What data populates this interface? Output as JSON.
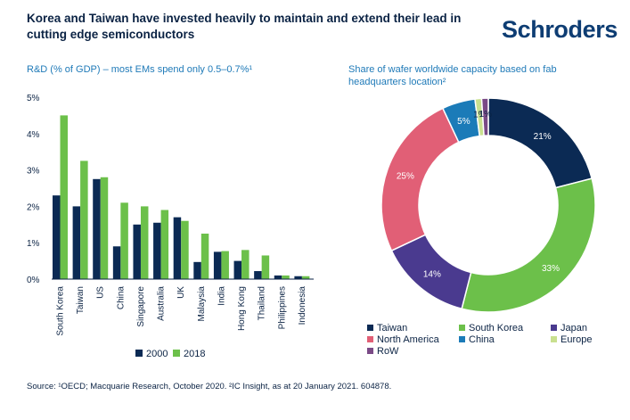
{
  "header": {
    "title": "Korea and Taiwan have invested heavily to maintain and extend their lead in cutting edge semiconductors",
    "brand": "Schroders"
  },
  "colors": {
    "series_2000": "#0b2a54",
    "series_2018": "#6cc04a",
    "taiwan": "#0b2a54",
    "south_korea": "#6cc04a",
    "japan": "#4a3a8f",
    "north_america": "#e15f76",
    "china": "#1b7bb8",
    "europe": "#c9e08f",
    "row": "#7a4a86"
  },
  "chart_data": [
    {
      "type": "bar",
      "title": "R&D (% of GDP) – most EMs spend only 0.5–0.7%¹",
      "categories": [
        "South Korea",
        "Taiwan",
        "US",
        "China",
        "Singapore",
        "Australia",
        "UK",
        "Malaysia",
        "India",
        "Hong Kong",
        "Thailand",
        "Philippines",
        "Indonesia"
      ],
      "series": [
        {
          "name": "2000",
          "values": [
            2.3,
            2.0,
            2.75,
            0.9,
            1.5,
            1.55,
            1.7,
            0.47,
            0.75,
            0.5,
            0.22,
            0.1,
            0.08
          ]
        },
        {
          "name": "2018",
          "values": [
            4.5,
            3.25,
            2.8,
            2.1,
            2.0,
            1.9,
            1.6,
            1.25,
            0.77,
            0.8,
            0.65,
            0.1,
            0.08
          ]
        }
      ],
      "yticks": [
        "0%",
        "1%",
        "2%",
        "3%",
        "4%",
        "5%"
      ],
      "ylim": [
        0,
        5
      ],
      "xlabel": "",
      "ylabel": "",
      "legend": "bottom"
    },
    {
      "type": "pie",
      "style": "donut",
      "title": "Share of wafer worldwide capacity based on fab headquarters location²",
      "slices": [
        {
          "name": "Taiwan",
          "value": 21,
          "label": "21%",
          "color_key": "taiwan"
        },
        {
          "name": "South Korea",
          "value": 33,
          "label": "33%",
          "color_key": "south_korea"
        },
        {
          "name": "Japan",
          "value": 14,
          "label": "14%",
          "color_key": "japan"
        },
        {
          "name": "North America",
          "value": 25,
          "label": "25%",
          "color_key": "north_america"
        },
        {
          "name": "China",
          "value": 5,
          "label": "5%",
          "color_key": "china"
        },
        {
          "name": "Europe",
          "value": 1,
          "label": "1%",
          "color_key": "europe"
        },
        {
          "name": "RoW",
          "value": 1,
          "label": "1%",
          "color_key": "row"
        }
      ],
      "legend": "bottom"
    }
  ],
  "footer": {
    "source": "Source: ¹OECD; Macquarie Research, October 2020. ²IC Insight, as at 20 January 2021. 604878."
  }
}
